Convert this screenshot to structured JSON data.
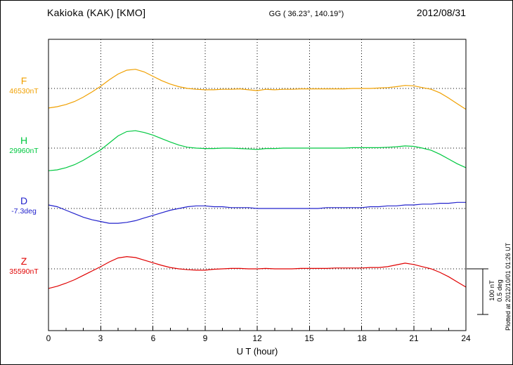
{
  "header": {
    "station": "Kakioka (KAK)  [KMO]",
    "coords": "GG ( 36.23°, 140.19°)",
    "date": "2012/08/31"
  },
  "x_axis": {
    "label": "U T (hour)",
    "ticks": [
      0,
      3,
      6,
      9,
      12,
      15,
      18,
      21,
      24
    ],
    "tick_labels": [
      "0",
      "3",
      "6",
      "9",
      "12",
      "15",
      "18",
      "21",
      "24"
    ],
    "min": 0,
    "max": 24
  },
  "scale_bar": {
    "label_nt": "100 nT",
    "label_deg": "0.5 deg"
  },
  "plotted_at": "Plotted at 2012/10/01 01:26 UT",
  "chart_data": {
    "type": "line",
    "title": "Kakioka (KAK) [KMO] geomagnetic variations 2012/08/31",
    "xlabel": "U T (hour)",
    "x_range": [
      0,
      24
    ],
    "grid": "dotted vertical at 3h, dotted horizontal baseline per trace",
    "scale": {
      "nT_per_div": 100,
      "deg_per_div": 0.5
    },
    "x_hours": [
      0,
      0.5,
      1,
      1.5,
      2,
      2.5,
      3,
      3.5,
      4,
      4.5,
      5,
      5.5,
      6,
      6.5,
      7,
      7.5,
      8,
      8.5,
      9,
      9.5,
      10,
      10.5,
      11,
      11.5,
      12,
      12.5,
      13,
      13.5,
      14,
      14.5,
      15,
      15.5,
      16,
      16.5,
      17,
      17.5,
      18,
      18.5,
      19,
      19.5,
      20,
      20.5,
      21,
      21.5,
      22,
      22.5,
      23,
      23.5,
      24
    ],
    "series": [
      {
        "id": "F",
        "label": "F",
        "baseline_label": "46530nT",
        "baseline_value": 46530,
        "unit": "nT",
        "color": "#f0a000",
        "offsets": [
          -45,
          -42,
          -37,
          -30,
          -20,
          -8,
          5,
          20,
          33,
          42,
          44,
          38,
          28,
          18,
          10,
          4,
          0,
          -2,
          -3,
          -3,
          -2,
          -2,
          -1,
          -3,
          -5,
          -2,
          -3,
          -2,
          -2,
          -1,
          -1,
          -1,
          -1,
          -1,
          -1,
          0,
          0,
          0,
          1,
          2,
          4,
          7,
          6,
          2,
          -2,
          -10,
          -22,
          -35,
          -48
        ]
      },
      {
        "id": "H",
        "label": "H",
        "baseline_label": "29960nT",
        "baseline_value": 29960,
        "unit": "nT",
        "color": "#00c840",
        "offsets": [
          -52,
          -50,
          -45,
          -38,
          -28,
          -16,
          -4,
          12,
          28,
          38,
          40,
          36,
          30,
          22,
          14,
          7,
          2,
          0,
          -1,
          -1,
          0,
          0,
          -1,
          -2,
          -3,
          -1,
          -1,
          0,
          0,
          0,
          0,
          0,
          0,
          0,
          0,
          1,
          1,
          1,
          1,
          2,
          3,
          5,
          4,
          0,
          -5,
          -14,
          -25,
          -36,
          -45
        ]
      },
      {
        "id": "D",
        "label": "D",
        "baseline_label": "-7.3deg",
        "baseline_value": -7.3,
        "unit": "deg",
        "color": "#2222cc",
        "offsets": [
          0.04,
          0.02,
          -0.02,
          -0.06,
          -0.1,
          -0.13,
          -0.15,
          -0.17,
          -0.17,
          -0.16,
          -0.14,
          -0.11,
          -0.08,
          -0.05,
          -0.02,
          0.0,
          0.02,
          0.03,
          0.03,
          0.02,
          0.02,
          0.01,
          0.01,
          0.01,
          0.0,
          0.0,
          0.0,
          0.0,
          0.0,
          0.0,
          0.0,
          0.0,
          0.01,
          0.01,
          0.01,
          0.01,
          0.01,
          0.02,
          0.02,
          0.03,
          0.03,
          0.04,
          0.04,
          0.05,
          0.05,
          0.06,
          0.06,
          0.07,
          0.07
        ]
      },
      {
        "id": "Z",
        "label": "Z",
        "baseline_label": "35590nT",
        "baseline_value": 35590,
        "unit": "nT",
        "color": "#e00000",
        "offsets": [
          -45,
          -40,
          -33,
          -25,
          -15,
          -5,
          5,
          16,
          25,
          28,
          26,
          20,
          14,
          8,
          3,
          0,
          -2,
          -3,
          -3,
          -1,
          0,
          1,
          1,
          0,
          0,
          1,
          0,
          0,
          0,
          1,
          1,
          1,
          1,
          2,
          2,
          2,
          2,
          3,
          3,
          5,
          9,
          13,
          10,
          5,
          0,
          -8,
          -18,
          -30,
          -42
        ]
      }
    ]
  }
}
